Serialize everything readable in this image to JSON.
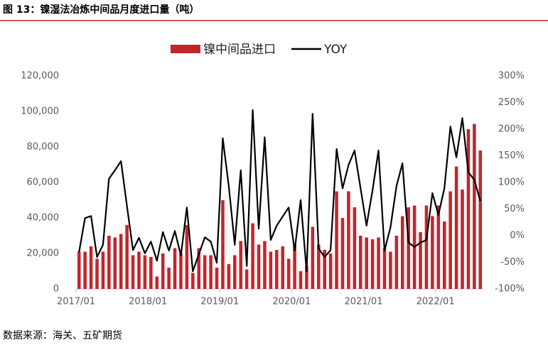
{
  "chart_data": {
    "type": "bar-line",
    "title": "图 13：镍湿法冶炼中间品月度进口量（吨）",
    "source": "数据来源：海关、五矿期货",
    "legend": "top",
    "categories": [
      "2017/01",
      null,
      null,
      null,
      null,
      null,
      null,
      null,
      null,
      null,
      null,
      null,
      "2018/01",
      null,
      null,
      null,
      null,
      null,
      null,
      null,
      null,
      null,
      null,
      null,
      "2019/01",
      null,
      null,
      null,
      null,
      null,
      null,
      null,
      null,
      null,
      null,
      null,
      "2020/01",
      null,
      null,
      null,
      null,
      null,
      null,
      null,
      null,
      null,
      null,
      null,
      "2021/01",
      null,
      null,
      null,
      null,
      null,
      null,
      null,
      null,
      null,
      null,
      null,
      "2022/01",
      null,
      null,
      null,
      null,
      null,
      null,
      null
    ],
    "series": [
      {
        "name": "镍中间品进口",
        "type": "bar",
        "color": "#c0272d",
        "values": [
          21000,
          21000,
          24000,
          17000,
          21000,
          30000,
          29000,
          31000,
          36000,
          19000,
          21000,
          19000,
          18000,
          7000,
          20000,
          12000,
          23000,
          20000,
          36000,
          9000,
          23000,
          19000,
          19000,
          12000,
          50000,
          14000,
          19000,
          27000,
          11000,
          37000,
          25000,
          27000,
          21000,
          22000,
          24000,
          17000,
          25000,
          10000,
          13000,
          35000,
          25000,
          22000,
          20000,
          55000,
          40000,
          55000,
          46000,
          30000,
          29000,
          28000,
          29000,
          23000,
          21000,
          30000,
          41000,
          46000,
          47000,
          32000,
          47000,
          41000,
          47000,
          38000,
          55000,
          69000,
          56000,
          90000,
          93000,
          78000
        ]
      },
      {
        "name": "YOY",
        "type": "line",
        "axis": "y2",
        "color": "#000000",
        "values": [
          -31,
          33,
          37,
          -40,
          -17,
          107,
          123,
          140,
          56,
          -27,
          -4,
          -33,
          -11,
          -47,
          7,
          -28,
          9,
          -37,
          53,
          -67,
          -35,
          -3,
          -11,
          -51,
          183,
          93,
          -17,
          123,
          -57,
          236,
          13,
          185,
          -8,
          19,
          36,
          53,
          -28,
          67,
          -67,
          229,
          -24,
          -40,
          -27,
          163,
          89,
          133,
          160,
          89,
          19,
          85,
          160,
          -28,
          16,
          93,
          136,
          -13,
          -21,
          -13,
          -8,
          80,
          39,
          89,
          205,
          147,
          221,
          119,
          105,
          65
        ]
      }
    ],
    "ylim": [
      0,
      120000
    ],
    "yticks": [
      0,
      {
        "value": 20000,
        "label": "20,000"
      },
      {
        "value": 40000,
        "label": "40,000"
      },
      {
        "value": 60000,
        "label": "60,000"
      },
      {
        "value": 80000,
        "label": "80,000"
      },
      {
        "value": 100000,
        "label": "100,000"
      },
      {
        "value": 120000,
        "label": "120,000"
      }
    ],
    "y2lim": [
      -100,
      300
    ],
    "y2ticks": [
      {
        "value": -100,
        "label": "-100%"
      },
      {
        "value": -50,
        "label": "-50%"
      },
      {
        "value": 0,
        "label": "0%"
      },
      {
        "value": 50,
        "label": "50%"
      },
      {
        "value": 100,
        "label": "100%"
      },
      {
        "value": 150,
        "label": "150%"
      },
      {
        "value": 200,
        "label": "200%"
      },
      {
        "value": 250,
        "label": "250%"
      },
      {
        "value": 300,
        "label": "300%"
      }
    ]
  }
}
